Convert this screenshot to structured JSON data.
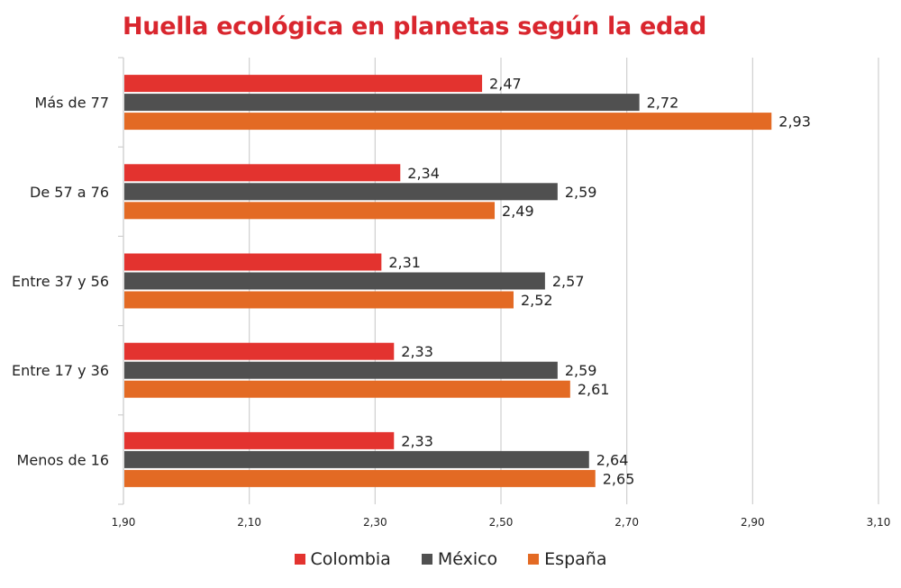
{
  "colors": {
    "title": "#D9262E",
    "colombia": "#E3332F",
    "mexico": "#505050",
    "espana": "#E36A24",
    "grid": "#CFCFCF",
    "text": "#222222"
  },
  "chart_data": {
    "type": "bar",
    "orientation": "horizontal",
    "title": "Huella ecológica en planetas según la edad",
    "xlabel": "",
    "ylabel": "",
    "xlim": [
      1.9,
      3.1
    ],
    "x_ticks": [
      "1,90",
      "2,10",
      "2,30",
      "2,50",
      "2,70",
      "2,90",
      "3,10"
    ],
    "x_tick_values": [
      1.9,
      2.1,
      2.3,
      2.5,
      2.7,
      2.9,
      3.1
    ],
    "grid": "vertical",
    "legend_position": "bottom",
    "categories": [
      "Más de 77",
      "De 57 a 76",
      "Entre 37 y 56",
      "Entre 17 y 36",
      "Menos de 16"
    ],
    "series": [
      {
        "name": "Colombia",
        "color_key": "colombia",
        "values": [
          2.47,
          2.34,
          2.31,
          2.33,
          2.33
        ],
        "labels": [
          "2,47",
          "2,34",
          "2,31",
          "2,33",
          "2,33"
        ]
      },
      {
        "name": "México",
        "color_key": "mexico",
        "values": [
          2.72,
          2.59,
          2.57,
          2.59,
          2.64
        ],
        "labels": [
          "2,72",
          "2,59",
          "2,57",
          "2,59",
          "2,64"
        ]
      },
      {
        "name": "España",
        "color_key": "espana",
        "values": [
          2.93,
          2.49,
          2.52,
          2.61,
          2.65
        ],
        "labels": [
          "2,93",
          "2,49",
          "2,52",
          "2,61",
          "2,65"
        ]
      }
    ]
  }
}
